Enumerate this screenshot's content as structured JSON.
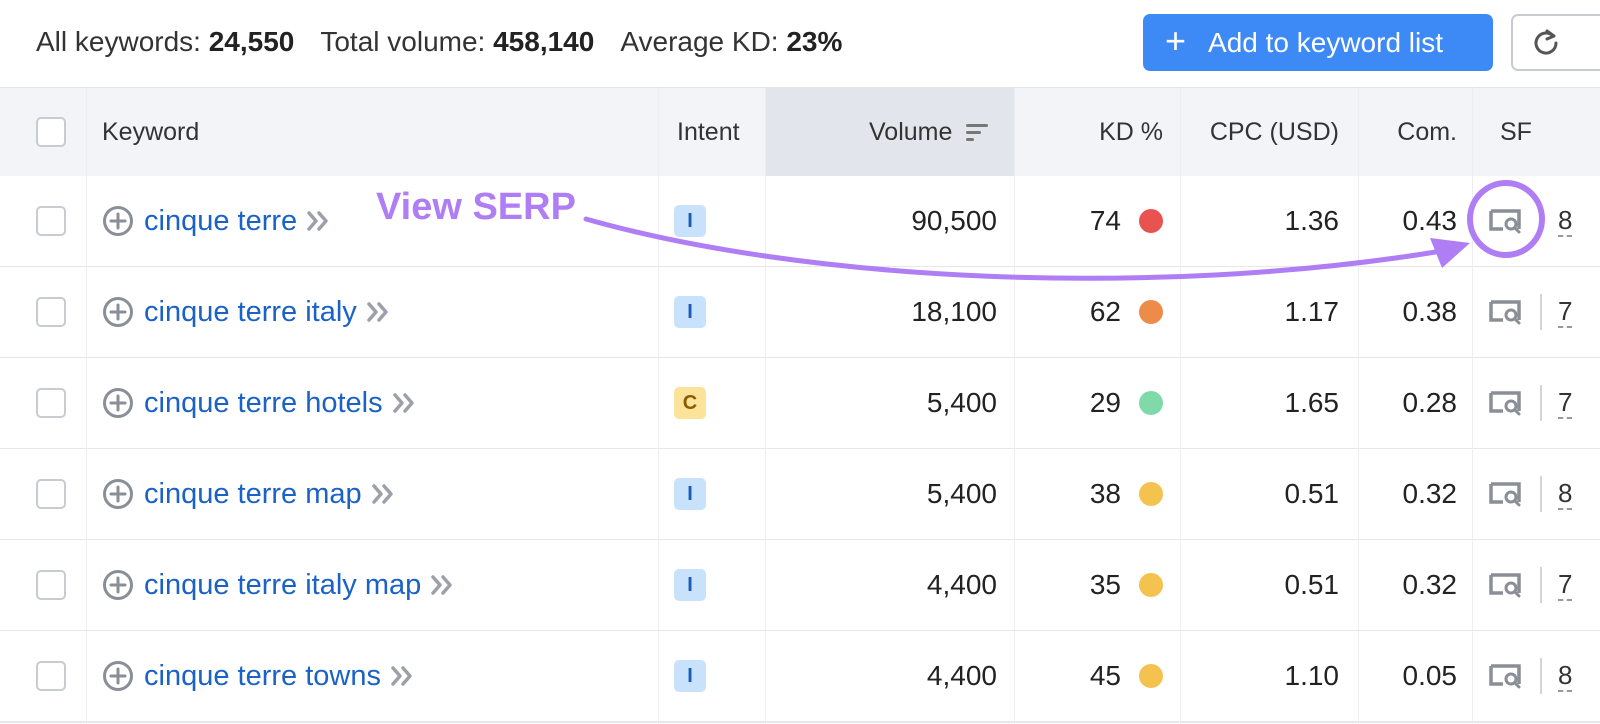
{
  "summary": {
    "all_keywords_label": "All keywords:",
    "all_keywords_value": "24,550",
    "total_volume_label": "Total volume:",
    "total_volume_value": "458,140",
    "average_kd_label": "Average KD:",
    "average_kd_value": "23%"
  },
  "toolbar": {
    "add_button_label": "Add to keyword list",
    "add_button_icon": "plus-icon",
    "refresh_icon": "refresh-icon",
    "accent_color": "#3d8af7"
  },
  "table": {
    "headers": {
      "keyword": "Keyword",
      "intent": "Intent",
      "volume": "Volume",
      "kd": "KD %",
      "cpc": "CPC (USD)",
      "com": "Com.",
      "sf": "SF"
    },
    "sorted_by": "volume",
    "rows": [
      {
        "keyword": "cinque terre",
        "intent": "I",
        "volume": "90,500",
        "kd": "74",
        "kd_color": "#e8534f",
        "cpc": "1.36",
        "com": "0.43",
        "sf": "8"
      },
      {
        "keyword": "cinque terre italy",
        "intent": "I",
        "volume": "18,100",
        "kd": "62",
        "kd_color": "#ed8c48",
        "cpc": "1.17",
        "com": "0.38",
        "sf": "7"
      },
      {
        "keyword": "cinque terre hotels",
        "intent": "C",
        "volume": "5,400",
        "kd": "29",
        "kd_color": "#7fd9a8",
        "cpc": "1.65",
        "com": "0.28",
        "sf": "7"
      },
      {
        "keyword": "cinque terre map",
        "intent": "I",
        "volume": "5,400",
        "kd": "38",
        "kd_color": "#f4c24f",
        "cpc": "0.51",
        "com": "0.32",
        "sf": "8"
      },
      {
        "keyword": "cinque terre italy map",
        "intent": "I",
        "volume": "4,400",
        "kd": "35",
        "kd_color": "#f4c24f",
        "cpc": "0.51",
        "com": "0.32",
        "sf": "7"
      },
      {
        "keyword": "cinque terre towns",
        "intent": "I",
        "volume": "4,400",
        "kd": "45",
        "kd_color": "#f4c24f",
        "cpc": "1.10",
        "com": "0.05",
        "sf": "8"
      }
    ]
  },
  "annotation": {
    "text": "View SERP",
    "color": "#b07ef4"
  }
}
